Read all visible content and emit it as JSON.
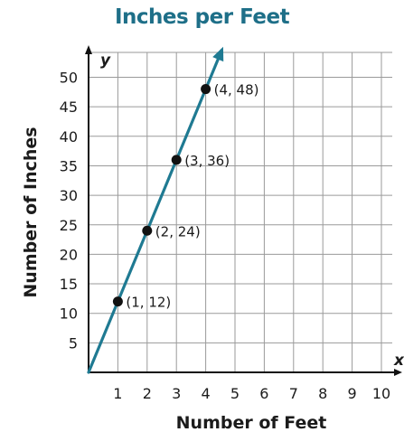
{
  "chart_data": {
    "type": "line",
    "title": "Inches per Feet",
    "xlabel": "Number of Feet",
    "ylabel": "Number of Inches",
    "x_axis_var": "x",
    "y_axis_var": "y",
    "xlim": [
      0,
      10
    ],
    "ylim": [
      0,
      52
    ],
    "x_ticks": [
      1,
      2,
      3,
      4,
      5,
      6,
      7,
      8,
      9,
      10
    ],
    "y_ticks": [
      5,
      10,
      15,
      20,
      25,
      30,
      35,
      40,
      45,
      50
    ],
    "grid": true,
    "series": [
      {
        "line": {
          "from": [
            0,
            0
          ],
          "to": [
            4.55,
            54.6
          ],
          "arrow_end": true,
          "color": "#1f7a92"
        },
        "points": [
          {
            "x": 1,
            "y": 12,
            "label": "(1, 12)"
          },
          {
            "x": 2,
            "y": 24,
            "label": "(2, 24)"
          },
          {
            "x": 3,
            "y": 36,
            "label": "(3, 36)"
          },
          {
            "x": 4,
            "y": 48,
            "label": "(4, 48)"
          }
        ]
      }
    ]
  }
}
